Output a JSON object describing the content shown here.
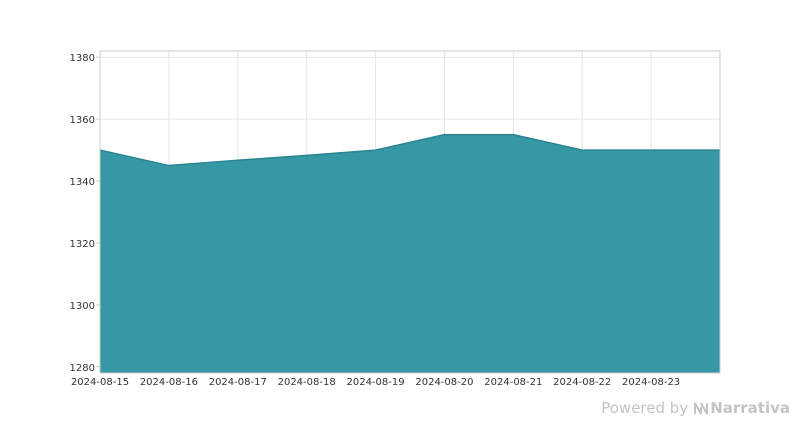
{
  "chart_data": {
    "type": "area",
    "x": [
      "2024-08-15",
      "2024-08-16",
      "2024-08-17",
      "2024-08-18",
      "2024-08-19",
      "2024-08-20",
      "2024-08-21",
      "2024-08-22",
      "2024-08-23",
      "2024-08-24"
    ],
    "x_tick_labels": [
      "2024-08-15",
      "2024-08-16",
      "2024-08-17",
      "2024-08-18",
      "2024-08-19",
      "2024-08-20",
      "2024-08-21",
      "2024-08-22",
      "2024-08-23"
    ],
    "series": [
      {
        "values": [
          1350,
          1345,
          1346.7,
          1348.3,
          1350,
          1355,
          1355,
          1350,
          1350,
          1350
        ]
      }
    ],
    "y_ticks": [
      1280,
      1300,
      1320,
      1340,
      1360,
      1380
    ],
    "ylim": [
      1278,
      1382
    ],
    "title": "",
    "xlabel": "",
    "ylabel": "",
    "grid": true,
    "fill_color": "#3598a4",
    "line_color": "#2b848f"
  },
  "credit": {
    "prefix": "Powered by",
    "brand": "Narrativa",
    "logo_icon": "narrativa-logo-icon"
  }
}
